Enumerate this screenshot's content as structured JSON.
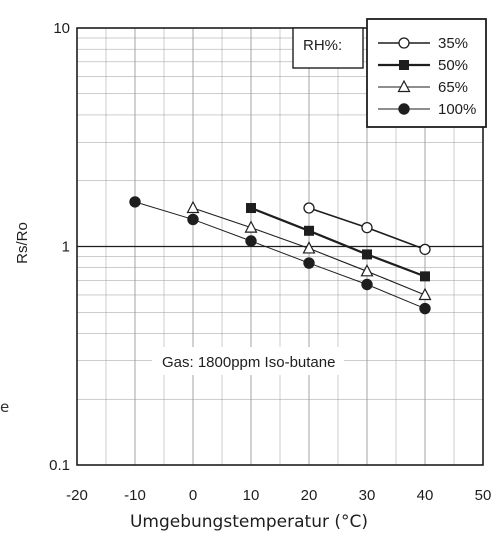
{
  "chart_data": {
    "type": "line",
    "x_scale": "linear",
    "y_scale": "log",
    "xlim": [
      -20,
      50
    ],
    "ylim": [
      0.1,
      10
    ],
    "xticks": [
      "-20",
      "-10",
      "0",
      "10",
      "20",
      "30",
      "40",
      "50"
    ],
    "yticks": [
      "0.1",
      "1",
      "10"
    ],
    "grid": true,
    "ylabel": "Rs/Ro",
    "xlabel": "Umgebungstemperatur (°C)",
    "annotation": "Gas: 1800ppm Iso-butane",
    "legend": {
      "title": "RH%:",
      "position": "top-right"
    },
    "series": [
      {
        "name": "35%",
        "marker": "open-circle",
        "x": [
          20,
          30,
          40
        ],
        "y": [
          1.5,
          1.22,
          0.97
        ]
      },
      {
        "name": "50%",
        "marker": "filled-square",
        "x": [
          10,
          20,
          30,
          40
        ],
        "y": [
          1.5,
          1.18,
          0.92,
          0.73
        ]
      },
      {
        "name": "65%",
        "marker": "open-triangle",
        "x": [
          0,
          10,
          20,
          30,
          40
        ],
        "y": [
          1.5,
          1.22,
          0.98,
          0.77,
          0.6
        ]
      },
      {
        "name": "100%",
        "marker": "filled-circle",
        "x": [
          -10,
          0,
          10,
          20,
          30,
          40
        ],
        "y": [
          1.6,
          1.33,
          1.06,
          0.84,
          0.67,
          0.52
        ]
      }
    ],
    "colors": {
      "ink": "#1e1e1e",
      "grid": "#9a9a9a",
      "background": "#ffffff"
    }
  },
  "margin_glyph": "e"
}
